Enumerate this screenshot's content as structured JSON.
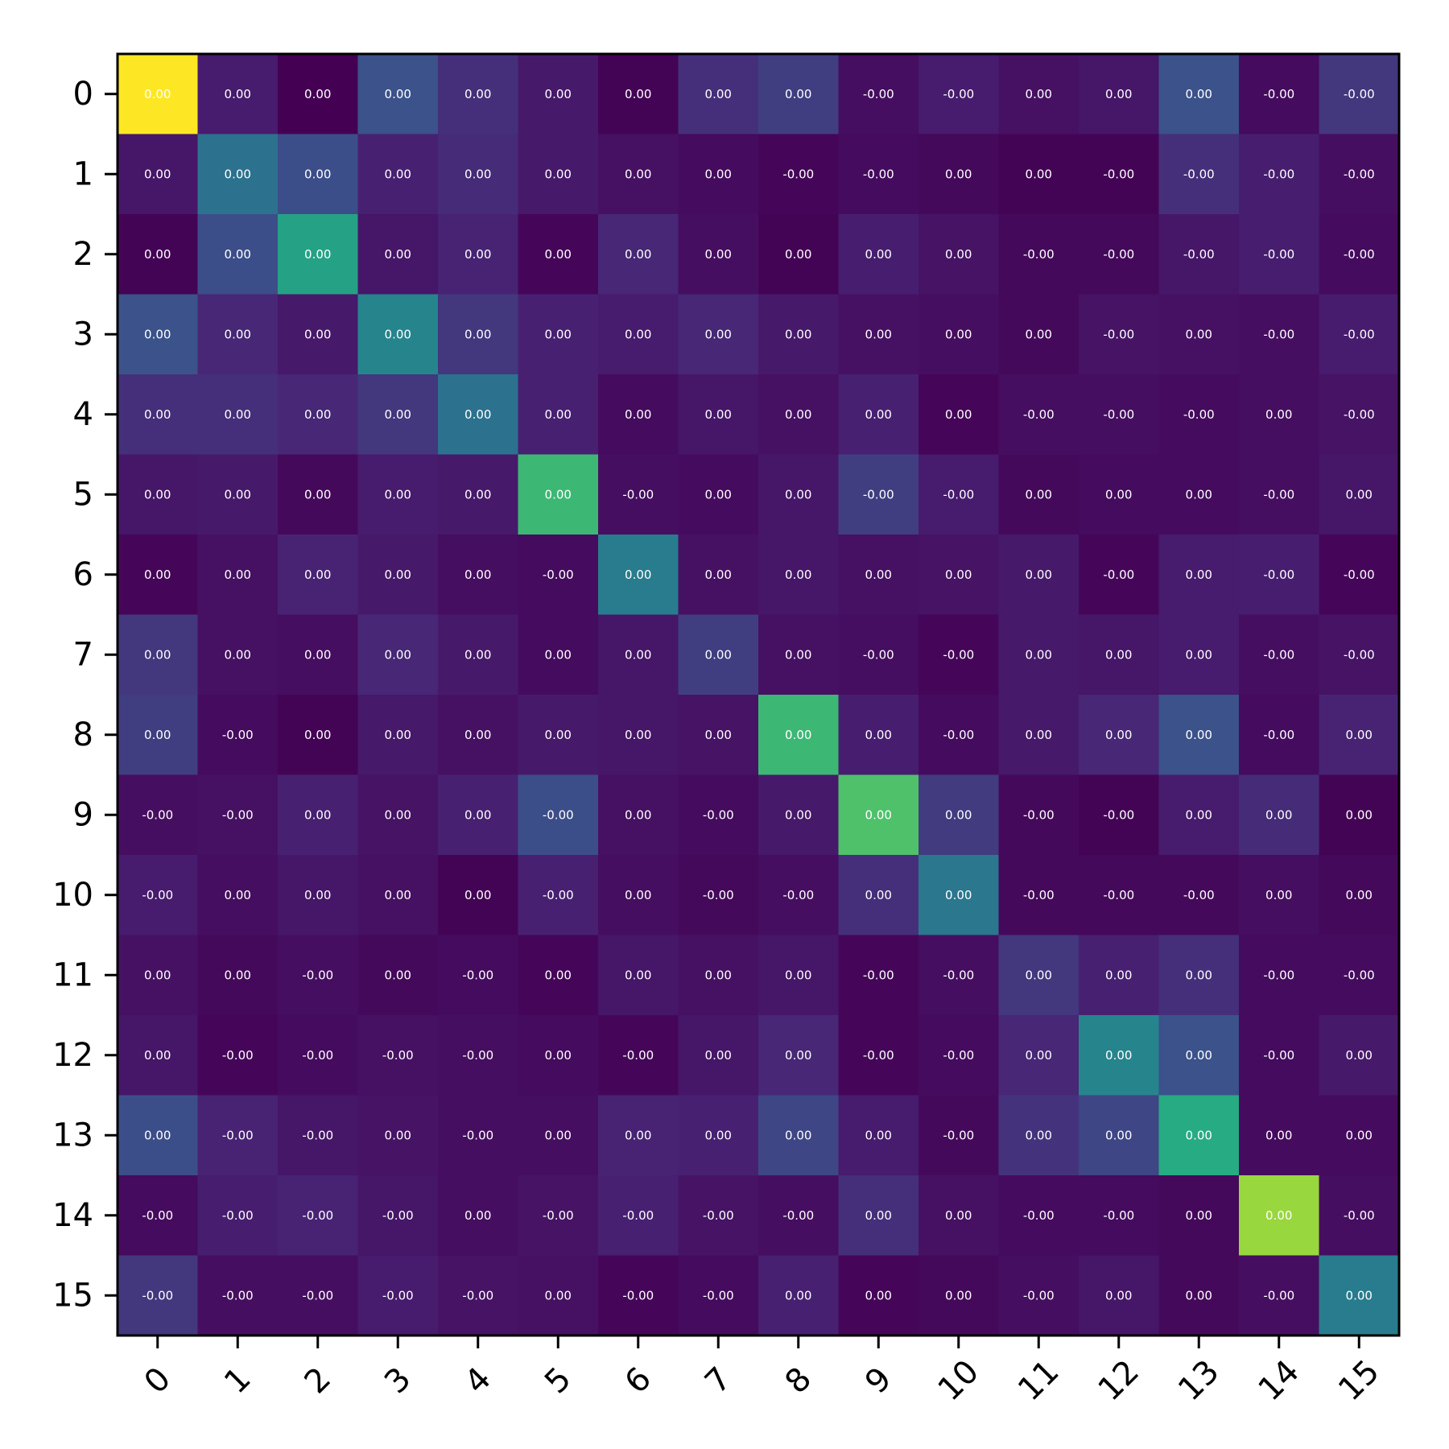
{
  "chart_data": {
    "type": "heatmap",
    "title": "",
    "xlabel": "",
    "ylabel": "",
    "colormap": "viridis",
    "grid": false,
    "legend": "none",
    "x_categories": [
      "0",
      "1",
      "2",
      "3",
      "4",
      "5",
      "6",
      "7",
      "8",
      "9",
      "10",
      "11",
      "12",
      "13",
      "14",
      "15"
    ],
    "y_categories": [
      "0",
      "1",
      "2",
      "3",
      "4",
      "5",
      "6",
      "7",
      "8",
      "9",
      "10",
      "11",
      "12",
      "13",
      "14",
      "15"
    ],
    "intensity": [
      [
        1.0,
        0.1,
        0.0,
        0.25,
        0.16,
        0.09,
        0.01,
        0.16,
        0.2,
        0.05,
        0.1,
        0.06,
        0.08,
        0.25,
        0.04,
        0.18
      ],
      [
        0.08,
        0.38,
        0.24,
        0.12,
        0.15,
        0.09,
        0.06,
        0.04,
        0.02,
        0.04,
        0.03,
        0.01,
        0.01,
        0.16,
        0.11,
        0.05
      ],
      [
        0.01,
        0.24,
        0.58,
        0.08,
        0.13,
        0.02,
        0.14,
        0.05,
        0.01,
        0.11,
        0.07,
        0.03,
        0.03,
        0.08,
        0.11,
        0.04
      ],
      [
        0.25,
        0.14,
        0.09,
        0.45,
        0.18,
        0.12,
        0.1,
        0.14,
        0.09,
        0.06,
        0.05,
        0.03,
        0.07,
        0.06,
        0.05,
        0.1
      ],
      [
        0.16,
        0.16,
        0.14,
        0.18,
        0.38,
        0.12,
        0.04,
        0.08,
        0.06,
        0.12,
        0.02,
        0.05,
        0.05,
        0.04,
        0.05,
        0.07
      ],
      [
        0.08,
        0.09,
        0.03,
        0.1,
        0.09,
        0.68,
        0.05,
        0.04,
        0.08,
        0.2,
        0.1,
        0.03,
        0.04,
        0.04,
        0.05,
        0.08
      ],
      [
        0.02,
        0.06,
        0.13,
        0.09,
        0.05,
        0.04,
        0.42,
        0.06,
        0.08,
        0.06,
        0.07,
        0.09,
        0.02,
        0.1,
        0.11,
        0.02
      ],
      [
        0.18,
        0.06,
        0.05,
        0.14,
        0.09,
        0.04,
        0.08,
        0.2,
        0.06,
        0.05,
        0.02,
        0.09,
        0.08,
        0.1,
        0.05,
        0.07
      ],
      [
        0.2,
        0.04,
        0.01,
        0.09,
        0.06,
        0.09,
        0.08,
        0.07,
        0.68,
        0.11,
        0.04,
        0.09,
        0.14,
        0.25,
        0.04,
        0.13
      ],
      [
        0.05,
        0.06,
        0.12,
        0.07,
        0.12,
        0.24,
        0.06,
        0.04,
        0.09,
        0.72,
        0.19,
        0.03,
        0.01,
        0.1,
        0.15,
        0.01
      ],
      [
        0.1,
        0.05,
        0.08,
        0.06,
        0.01,
        0.12,
        0.05,
        0.03,
        0.05,
        0.16,
        0.4,
        0.03,
        0.03,
        0.03,
        0.05,
        0.03
      ],
      [
        0.06,
        0.03,
        0.05,
        0.03,
        0.04,
        0.02,
        0.08,
        0.06,
        0.08,
        0.02,
        0.05,
        0.18,
        0.12,
        0.16,
        0.04,
        0.04
      ],
      [
        0.08,
        0.02,
        0.04,
        0.06,
        0.05,
        0.04,
        0.02,
        0.08,
        0.14,
        0.02,
        0.04,
        0.14,
        0.45,
        0.25,
        0.04,
        0.09
      ],
      [
        0.24,
        0.13,
        0.08,
        0.07,
        0.05,
        0.05,
        0.13,
        0.12,
        0.22,
        0.1,
        0.03,
        0.17,
        0.22,
        0.62,
        0.04,
        0.04
      ],
      [
        0.04,
        0.11,
        0.13,
        0.08,
        0.05,
        0.07,
        0.12,
        0.07,
        0.05,
        0.16,
        0.06,
        0.04,
        0.04,
        0.03,
        0.85,
        0.05
      ],
      [
        0.18,
        0.05,
        0.05,
        0.1,
        0.07,
        0.06,
        0.02,
        0.04,
        0.12,
        0.02,
        0.03,
        0.05,
        0.08,
        0.03,
        0.05,
        0.42
      ]
    ],
    "labels": [
      [
        "0.00",
        "0.00",
        "0.00",
        "0.00",
        "0.00",
        "0.00",
        "0.00",
        "0.00",
        "0.00",
        "-0.00",
        "-0.00",
        "0.00",
        "0.00",
        "0.00",
        "-0.00",
        "-0.00"
      ],
      [
        "0.00",
        "0.00",
        "0.00",
        "0.00",
        "0.00",
        "0.00",
        "0.00",
        "0.00",
        "-0.00",
        "-0.00",
        "0.00",
        "0.00",
        "-0.00",
        "-0.00",
        "-0.00",
        "-0.00"
      ],
      [
        "0.00",
        "0.00",
        "0.00",
        "0.00",
        "0.00",
        "0.00",
        "0.00",
        "0.00",
        "0.00",
        "0.00",
        "0.00",
        "-0.00",
        "-0.00",
        "-0.00",
        "-0.00",
        "-0.00"
      ],
      [
        "0.00",
        "0.00",
        "0.00",
        "0.00",
        "0.00",
        "0.00",
        "0.00",
        "0.00",
        "0.00",
        "0.00",
        "0.00",
        "0.00",
        "-0.00",
        "0.00",
        "-0.00",
        "-0.00"
      ],
      [
        "0.00",
        "0.00",
        "0.00",
        "0.00",
        "0.00",
        "0.00",
        "0.00",
        "0.00",
        "0.00",
        "0.00",
        "0.00",
        "-0.00",
        "-0.00",
        "-0.00",
        "0.00",
        "-0.00"
      ],
      [
        "0.00",
        "0.00",
        "0.00",
        "0.00",
        "0.00",
        "0.00",
        "-0.00",
        "0.00",
        "0.00",
        "-0.00",
        "-0.00",
        "0.00",
        "0.00",
        "0.00",
        "-0.00",
        "0.00"
      ],
      [
        "0.00",
        "0.00",
        "0.00",
        "0.00",
        "0.00",
        "-0.00",
        "0.00",
        "0.00",
        "0.00",
        "0.00",
        "0.00",
        "0.00",
        "-0.00",
        "0.00",
        "-0.00",
        "-0.00"
      ],
      [
        "0.00",
        "0.00",
        "0.00",
        "0.00",
        "0.00",
        "0.00",
        "0.00",
        "0.00",
        "0.00",
        "-0.00",
        "-0.00",
        "0.00",
        "0.00",
        "0.00",
        "-0.00",
        "-0.00"
      ],
      [
        "0.00",
        "-0.00",
        "0.00",
        "0.00",
        "0.00",
        "0.00",
        "0.00",
        "0.00",
        "0.00",
        "0.00",
        "-0.00",
        "0.00",
        "0.00",
        "0.00",
        "-0.00",
        "0.00"
      ],
      [
        "-0.00",
        "-0.00",
        "0.00",
        "0.00",
        "0.00",
        "-0.00",
        "0.00",
        "-0.00",
        "0.00",
        "0.00",
        "0.00",
        "-0.00",
        "-0.00",
        "0.00",
        "0.00",
        "0.00"
      ],
      [
        "-0.00",
        "0.00",
        "0.00",
        "0.00",
        "0.00",
        "-0.00",
        "0.00",
        "-0.00",
        "-0.00",
        "0.00",
        "0.00",
        "-0.00",
        "-0.00",
        "-0.00",
        "0.00",
        "0.00"
      ],
      [
        "0.00",
        "0.00",
        "-0.00",
        "0.00",
        "-0.00",
        "0.00",
        "0.00",
        "0.00",
        "0.00",
        "-0.00",
        "-0.00",
        "0.00",
        "0.00",
        "0.00",
        "-0.00",
        "-0.00"
      ],
      [
        "0.00",
        "-0.00",
        "-0.00",
        "-0.00",
        "-0.00",
        "0.00",
        "-0.00",
        "0.00",
        "0.00",
        "-0.00",
        "-0.00",
        "0.00",
        "0.00",
        "0.00",
        "-0.00",
        "0.00"
      ],
      [
        "0.00",
        "-0.00",
        "-0.00",
        "0.00",
        "-0.00",
        "0.00",
        "0.00",
        "0.00",
        "0.00",
        "0.00",
        "-0.00",
        "0.00",
        "0.00",
        "0.00",
        "0.00",
        "0.00"
      ],
      [
        "-0.00",
        "-0.00",
        "-0.00",
        "-0.00",
        "0.00",
        "-0.00",
        "-0.00",
        "-0.00",
        "-0.00",
        "0.00",
        "0.00",
        "-0.00",
        "-0.00",
        "0.00",
        "0.00",
        "-0.00"
      ],
      [
        "-0.00",
        "-0.00",
        "-0.00",
        "-0.00",
        "-0.00",
        "0.00",
        "-0.00",
        "-0.00",
        "0.00",
        "0.00",
        "0.00",
        "-0.00",
        "0.00",
        "0.00",
        "-0.00",
        "0.00"
      ]
    ]
  }
}
